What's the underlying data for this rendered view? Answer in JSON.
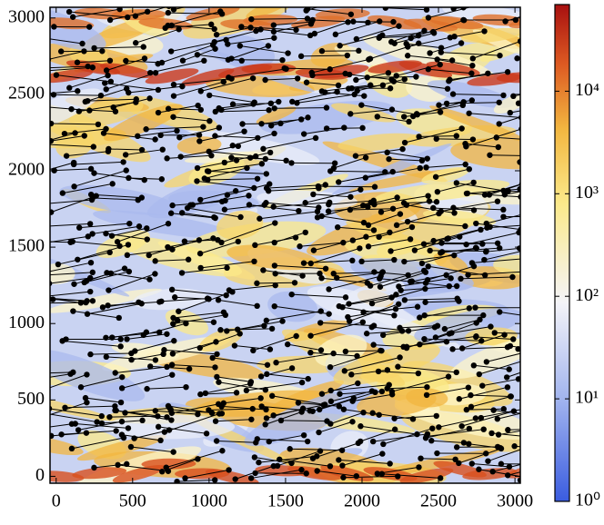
{
  "chart_data": {
    "type": "heatmap",
    "xlim": [
      -40,
      3035
    ],
    "xticks": [
      0,
      500,
      1000,
      1500,
      2000,
      2500,
      3000
    ],
    "ylim": [
      -45,
      3070
    ],
    "yticks": [
      0,
      500,
      1000,
      1500,
      2000,
      2500,
      3000
    ],
    "colorbar": {
      "scale": "log",
      "lim": [
        1,
        70000
      ],
      "ticks": [
        {
          "value": 1,
          "label": "10⁰"
        },
        {
          "value": 10,
          "label": "10¹"
        },
        {
          "value": 100,
          "label": "10²"
        },
        {
          "value": 1000,
          "label": "10³"
        },
        {
          "value": 10000,
          "label": "10⁴"
        }
      ]
    }
  }
}
